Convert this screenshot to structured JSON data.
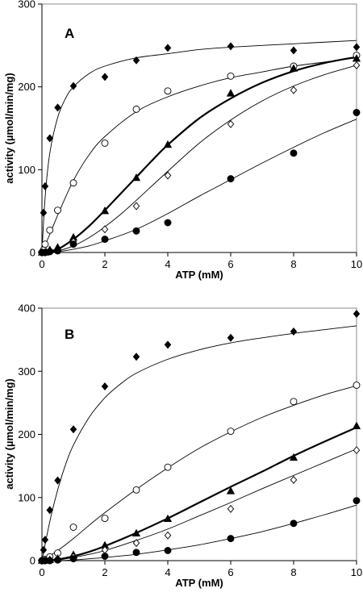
{
  "chart_data": [
    {
      "type": "scatter",
      "panel_label": "A",
      "xlabel": "ATP (mM)",
      "ylabel": "activity (µmol/min/mg)",
      "xlim": [
        0,
        10
      ],
      "ylim": [
        0,
        300
      ],
      "x_ticks": [
        0,
        2,
        4,
        6,
        8,
        10
      ],
      "y_ticks": [
        0,
        100,
        200,
        300
      ],
      "grid": false,
      "legend": "none",
      "series": [
        {
          "marker": "diamond-filled",
          "fit_line": "thin",
          "points": [
            [
              0,
              0
            ],
            [
              0.05,
              48
            ],
            [
              0.1,
              80
            ],
            [
              0.25,
              138
            ],
            [
              0.5,
              175
            ],
            [
              1,
              201
            ],
            [
              2,
              212
            ],
            [
              3,
              232
            ],
            [
              4,
              247
            ],
            [
              6,
              249
            ],
            [
              8,
              244
            ],
            [
              10,
              248
            ]
          ],
          "fit": [
            [
              0,
              0
            ],
            [
              0.1,
              66
            ],
            [
              0.25,
              120
            ],
            [
              0.5,
              163
            ],
            [
              0.75,
              186
            ],
            [
              1,
              200
            ],
            [
              1.5,
              216
            ],
            [
              2,
              225
            ],
            [
              3,
              235
            ],
            [
              4,
              240
            ],
            [
              5,
              245
            ],
            [
              6,
              248
            ],
            [
              8,
              252
            ],
            [
              10,
              256
            ]
          ]
        },
        {
          "marker": "circle-open",
          "fit_line": "thin",
          "points": [
            [
              0,
              0
            ],
            [
              0.05,
              3
            ],
            [
              0.1,
              10
            ],
            [
              0.25,
              27
            ],
            [
              0.5,
              51
            ],
            [
              1,
              84
            ],
            [
              2,
              132
            ],
            [
              3,
              173
            ],
            [
              4,
              195
            ],
            [
              6,
              213
            ],
            [
              8,
              225
            ],
            [
              10,
              238
            ]
          ],
          "fit": [
            [
              0,
              0
            ],
            [
              0.25,
              22
            ],
            [
              0.5,
              45
            ],
            [
              1,
              87
            ],
            [
              1.5,
              118
            ],
            [
              2,
              140
            ],
            [
              3,
              170
            ],
            [
              4,
              188
            ],
            [
              5,
              201
            ],
            [
              6,
              211
            ],
            [
              7,
              218
            ],
            [
              8,
              225
            ],
            [
              9,
              230
            ],
            [
              10,
              235
            ]
          ]
        },
        {
          "marker": "triangle-filled",
          "fit_line": "thick",
          "points": [
            [
              0,
              0
            ],
            [
              0.1,
              0
            ],
            [
              0.25,
              3
            ],
            [
              0.5,
              6
            ],
            [
              1,
              18
            ],
            [
              2,
              50
            ],
            [
              3,
              90
            ],
            [
              4,
              130
            ],
            [
              6,
              192
            ],
            [
              8,
              222
            ],
            [
              10,
              234
            ]
          ],
          "fit": [
            [
              0,
              0
            ],
            [
              0.5,
              4
            ],
            [
              1,
              16
            ],
            [
              1.5,
              32
            ],
            [
              2,
              51
            ],
            [
              2.5,
              71
            ],
            [
              3,
              91
            ],
            [
              3.5,
              111
            ],
            [
              4,
              130
            ],
            [
              5,
              162
            ],
            [
              6,
              186
            ],
            [
              7,
              205
            ],
            [
              8,
              219
            ],
            [
              9,
              229
            ],
            [
              10,
              236
            ]
          ]
        },
        {
          "marker": "diamond-open",
          "fit_line": "thin",
          "points": [
            [
              0,
              0
            ],
            [
              0.1,
              0
            ],
            [
              0.25,
              2
            ],
            [
              0.5,
              3
            ],
            [
              1,
              13
            ],
            [
              2,
              28
            ],
            [
              3,
              56
            ],
            [
              4,
              93
            ],
            [
              6,
              155
            ],
            [
              8,
              196
            ],
            [
              10,
              226
            ]
          ],
          "fit": [
            [
              0,
              0
            ],
            [
              0.5,
              2
            ],
            [
              1,
              8
            ],
            [
              1.5,
              18
            ],
            [
              2,
              31
            ],
            [
              2.5,
              46
            ],
            [
              3,
              63
            ],
            [
              4,
              98
            ],
            [
              5,
              132
            ],
            [
              6,
              160
            ],
            [
              7,
              183
            ],
            [
              8,
              201
            ],
            [
              9,
              215
            ],
            [
              10,
              226
            ]
          ]
        },
        {
          "marker": "circle-filled",
          "fit_line": "thin",
          "points": [
            [
              0,
              0
            ],
            [
              0.1,
              0
            ],
            [
              0.25,
              1
            ],
            [
              0.5,
              2
            ],
            [
              1,
              10
            ],
            [
              2,
              16
            ],
            [
              3,
              26
            ],
            [
              4,
              36
            ],
            [
              6,
              89
            ],
            [
              8,
              120
            ],
            [
              10,
              169
            ]
          ],
          "fit": [
            [
              0,
              0
            ],
            [
              0.5,
              1
            ],
            [
              1,
              4
            ],
            [
              1.5,
              8
            ],
            [
              2,
              14
            ],
            [
              3,
              28
            ],
            [
              4,
              47
            ],
            [
              5,
              68
            ],
            [
              6,
              88
            ],
            [
              7,
              108
            ],
            [
              8,
              127
            ],
            [
              9,
              145
            ],
            [
              10,
              161
            ]
          ]
        }
      ]
    },
    {
      "type": "scatter",
      "panel_label": "B",
      "xlabel": "ATP (mM)",
      "ylabel": "activity (µmol/min/mg)",
      "xlim": [
        0,
        10
      ],
      "ylim": [
        0,
        400
      ],
      "x_ticks": [
        0,
        2,
        4,
        6,
        8,
        10
      ],
      "y_ticks": [
        0,
        100,
        200,
        300,
        400
      ],
      "grid": false,
      "legend": "none",
      "series": [
        {
          "marker": "diamond-filled",
          "fit_line": "thin",
          "points": [
            [
              0,
              0
            ],
            [
              0.05,
              17
            ],
            [
              0.1,
              33
            ],
            [
              0.25,
              80
            ],
            [
              0.5,
              127
            ],
            [
              1,
              208
            ],
            [
              2,
              276
            ],
            [
              3,
              323
            ],
            [
              4,
              342
            ],
            [
              6,
              353
            ],
            [
              8,
              363
            ],
            [
              10,
              391
            ]
          ],
          "fit": [
            [
              0,
              0
            ],
            [
              0.25,
              62
            ],
            [
              0.5,
              112
            ],
            [
              0.75,
              152
            ],
            [
              1,
              183
            ],
            [
              1.5,
              227
            ],
            [
              2,
              258
            ],
            [
              2.5,
              280
            ],
            [
              3,
              297
            ],
            [
              4,
              319
            ],
            [
              5,
              334
            ],
            [
              6,
              345
            ],
            [
              7,
              353
            ],
            [
              8,
              360
            ],
            [
              9,
              366
            ],
            [
              10,
              372
            ]
          ]
        },
        {
          "marker": "circle-open",
          "fit_line": "thin",
          "points": [
            [
              0,
              0
            ],
            [
              0.1,
              2
            ],
            [
              0.25,
              6
            ],
            [
              0.5,
              12
            ],
            [
              1,
              53
            ],
            [
              2,
              67
            ],
            [
              3,
              112
            ],
            [
              4,
              148
            ],
            [
              6,
              205
            ],
            [
              8,
              252
            ],
            [
              10,
              278
            ]
          ],
          "fit": [
            [
              0,
              0
            ],
            [
              0.5,
              16
            ],
            [
              1,
              35
            ],
            [
              1.5,
              56
            ],
            [
              2,
              76
            ],
            [
              3,
              113
            ],
            [
              4,
              147
            ],
            [
              5,
              178
            ],
            [
              6,
              204
            ],
            [
              7,
              227
            ],
            [
              8,
              246
            ],
            [
              9,
              263
            ],
            [
              10,
              277
            ]
          ]
        },
        {
          "marker": "triangle-filled",
          "fit_line": "thick",
          "points": [
            [
              0,
              0
            ],
            [
              0.1,
              0
            ],
            [
              0.25,
              1
            ],
            [
              0.5,
              3
            ],
            [
              1,
              9
            ],
            [
              2,
              24
            ],
            [
              3,
              43
            ],
            [
              4,
              66
            ],
            [
              6,
              110
            ],
            [
              8,
              163
            ],
            [
              10,
              213
            ]
          ],
          "fit": [
            [
              0,
              0
            ],
            [
              0.5,
              2
            ],
            [
              1,
              7
            ],
            [
              1.5,
              14
            ],
            [
              2,
              23
            ],
            [
              3,
              44
            ],
            [
              4,
              67
            ],
            [
              5,
              92
            ],
            [
              6,
              117
            ],
            [
              7,
              141
            ],
            [
              8,
              166
            ],
            [
              9,
              189
            ],
            [
              10,
              211
            ]
          ]
        },
        {
          "marker": "diamond-open",
          "fit_line": "thin",
          "points": [
            [
              0,
              0
            ],
            [
              0.1,
              0
            ],
            [
              0.25,
              1
            ],
            [
              0.5,
              2
            ],
            [
              1,
              6
            ],
            [
              2,
              17
            ],
            [
              3,
              28
            ],
            [
              4,
              40
            ],
            [
              6,
              82
            ],
            [
              8,
              128
            ],
            [
              10,
              175
            ]
          ],
          "fit": [
            [
              0,
              0
            ],
            [
              0.5,
              1
            ],
            [
              1,
              5
            ],
            [
              1.5,
              10
            ],
            [
              2,
              16
            ],
            [
              3,
              32
            ],
            [
              4,
              50
            ],
            [
              5,
              71
            ],
            [
              6,
              92
            ],
            [
              7,
              114
            ],
            [
              8,
              135
            ],
            [
              9,
              156
            ],
            [
              10,
              177
            ]
          ]
        },
        {
          "marker": "circle-filled",
          "fit_line": "thin",
          "points": [
            [
              0,
              0
            ],
            [
              0.1,
              0
            ],
            [
              0.25,
              0
            ],
            [
              0.5,
              1
            ],
            [
              1,
              3
            ],
            [
              2,
              7
            ],
            [
              3,
              13
            ],
            [
              4,
              16
            ],
            [
              6,
              35
            ],
            [
              8,
              59
            ],
            [
              10,
              95
            ]
          ],
          "fit": [
            [
              0,
              0
            ],
            [
              0.5,
              0
            ],
            [
              1,
              1
            ],
            [
              1.5,
              3
            ],
            [
              2,
              5
            ],
            [
              3,
              10
            ],
            [
              4,
              17
            ],
            [
              5,
              25
            ],
            [
              6,
              35
            ],
            [
              7,
              46
            ],
            [
              8,
              59
            ],
            [
              9,
              73
            ],
            [
              10,
              88
            ]
          ]
        }
      ]
    }
  ]
}
